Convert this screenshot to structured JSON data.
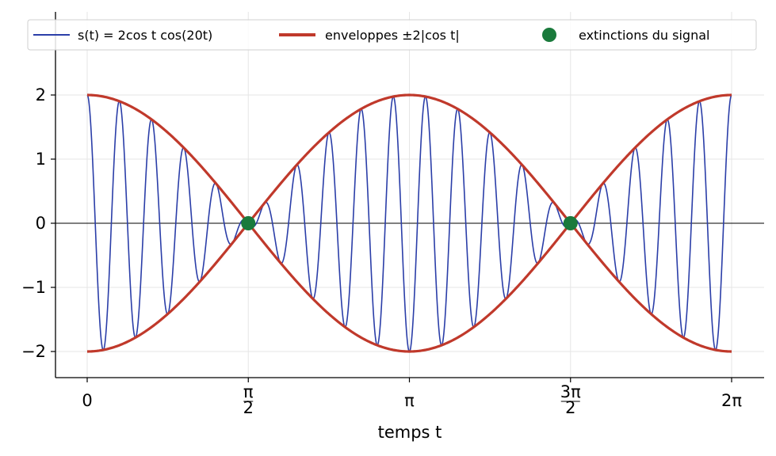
{
  "chart_data": {
    "type": "line",
    "xlabel": "temps t",
    "x_range": [
      0,
      6.283185307
    ],
    "y_range": [
      -2.4,
      2.8
    ],
    "x_ticks": [
      {
        "value": 0,
        "label": "0"
      },
      {
        "value": 1.5707963,
        "label": "π/2"
      },
      {
        "value": 3.1415927,
        "label": "π"
      },
      {
        "value": 4.712389,
        "label": "3π/2"
      },
      {
        "value": 6.2831853,
        "label": "2π"
      }
    ],
    "y_ticks": [
      -2,
      -1,
      0,
      1,
      2
    ],
    "grid": true,
    "legend_position": "top",
    "series": [
      {
        "name": "s(t) = 2cos t cos(20t)",
        "color": "#2b3ea8",
        "kind": "line",
        "formula": "2*cos(t)*cos(20*t)"
      },
      {
        "name": "enveloppes ±2|cos t|",
        "color": "#c0392b",
        "kind": "line",
        "formula": "±2*cos(t)"
      },
      {
        "name": "extinctions du signal",
        "color": "#1a7a3c",
        "kind": "scatter",
        "points": [
          {
            "x": 1.5707963,
            "y": 0
          },
          {
            "x": 4.712389,
            "y": 0
          }
        ]
      }
    ]
  }
}
